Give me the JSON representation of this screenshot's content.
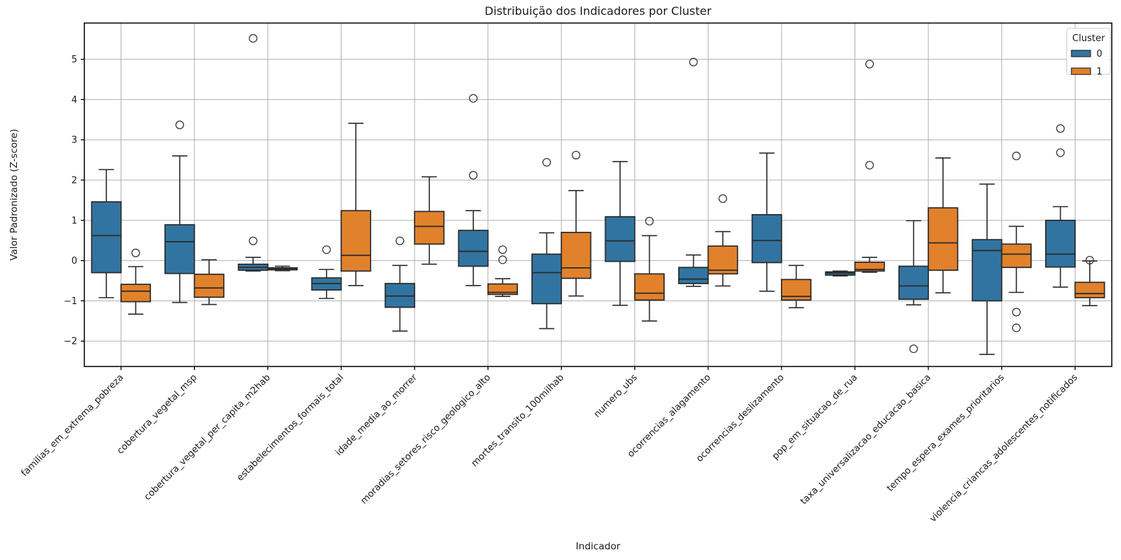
{
  "figure": {
    "title": "Distribuição dos Indicadores por Cluster",
    "xlabel": "Indicador",
    "ylabel": "Valor Padronizado (Z-score)"
  },
  "legend": {
    "title": "Cluster",
    "entries": [
      {
        "label": "0",
        "color": "#3274a1"
      },
      {
        "label": "1",
        "color": "#e1812c"
      }
    ]
  },
  "style": {
    "blue": "#3274a1",
    "orange": "#e1812c",
    "box_edge": "#2b2b2b",
    "outlier_edge": "#3b3b3b",
    "grid_color": "#b0b0b0",
    "spine_color": "#000000",
    "text_color": "#1a1a1a",
    "legend_border": "#cccccc"
  },
  "chart_data": {
    "type": "box",
    "title": "Distribuição dos Indicadores por Cluster",
    "xlabel": "Indicador",
    "ylabel": "Valor Padronizado (Z-score)",
    "ylim": [
      -2.63,
      5.9
    ],
    "yticks": [
      -2,
      -1,
      0,
      1,
      2,
      3,
      4,
      5
    ],
    "ytick_labels": [
      "−2",
      "−1",
      "0",
      "1",
      "2",
      "3",
      "4",
      "5"
    ],
    "grid": true,
    "legend_position": "top-right",
    "legend_title": "Cluster",
    "categories": [
      "familias_em_extrema_pobreza",
      "cobertura_vegetal_msp",
      "cobertura_vegetal_per_capita_m2hab",
      "estabelecimentos_formais_total",
      "idade_media_ao_morrer",
      "moradias_setores_risco_geologico_alto",
      "mortes_transito_100milhab",
      "numero_ubs",
      "ocorrencias_alagamento",
      "ocorrencias_deslizamento",
      "pop_em_situacao_de_rua",
      "taxa_universalizacao_educacao_basica",
      "tempo_espera_exames_prioritarios",
      "violencia_criancas_adolescentes_notificados"
    ],
    "series": [
      {
        "name": "0",
        "color": "#3274a1",
        "boxes": [
          {
            "lo": -0.92,
            "q1": -0.3,
            "med": 0.62,
            "q3": 1.46,
            "hi": 2.26,
            "out": []
          },
          {
            "lo": -1.04,
            "q1": -0.32,
            "med": 0.47,
            "q3": 0.89,
            "hi": 2.6,
            "out": [
              3.37
            ]
          },
          {
            "lo": -0.26,
            "q1": -0.24,
            "med": -0.17,
            "q3": -0.09,
            "hi": 0.08,
            "out": [
              0.49,
              5.52
            ]
          },
          {
            "lo": -0.94,
            "q1": -0.73,
            "med": -0.57,
            "q3": -0.43,
            "hi": -0.22,
            "out": [
              0.27
            ]
          },
          {
            "lo": -1.75,
            "q1": -1.16,
            "med": -0.88,
            "q3": -0.57,
            "hi": -0.12,
            "out": [
              0.49
            ]
          },
          {
            "lo": -0.62,
            "q1": -0.14,
            "med": 0.23,
            "q3": 0.75,
            "hi": 1.24,
            "out": [
              2.12,
              4.03
            ]
          },
          {
            "lo": -1.69,
            "q1": -1.07,
            "med": -0.3,
            "q3": 0.16,
            "hi": 0.69,
            "out": [
              2.44
            ]
          },
          {
            "lo": -1.11,
            "q1": -0.02,
            "med": 0.49,
            "q3": 1.09,
            "hi": 2.46,
            "out": []
          },
          {
            "lo": -0.64,
            "q1": -0.57,
            "med": -0.46,
            "q3": -0.17,
            "hi": 0.14,
            "out": [
              4.93
            ]
          },
          {
            "lo": -0.76,
            "q1": -0.05,
            "med": 0.5,
            "q3": 1.14,
            "hi": 2.67,
            "out": []
          },
          {
            "lo": -0.38,
            "q1": -0.36,
            "med": -0.31,
            "q3": -0.28,
            "hi": -0.26,
            "out": []
          },
          {
            "lo": -1.1,
            "q1": -0.96,
            "med": -0.63,
            "q3": -0.14,
            "hi": 0.99,
            "out": [
              -2.19
            ]
          },
          {
            "lo": -2.33,
            "q1": -1.0,
            "med": 0.25,
            "q3": 0.52,
            "hi": 1.9,
            "out": []
          },
          {
            "lo": -0.66,
            "q1": -0.16,
            "med": 0.16,
            "q3": 1.0,
            "hi": 1.34,
            "out": [
              2.68,
              3.28
            ]
          }
        ]
      },
      {
        "name": "1",
        "color": "#e1812c",
        "boxes": [
          {
            "lo": -1.33,
            "q1": -1.02,
            "med": -0.76,
            "q3": -0.59,
            "hi": -0.15,
            "out": [
              0.19
            ]
          },
          {
            "lo": -1.09,
            "q1": -0.91,
            "med": -0.68,
            "q3": -0.34,
            "hi": 0.02,
            "out": []
          },
          {
            "lo": -0.25,
            "q1": -0.23,
            "med": -0.2,
            "q3": -0.18,
            "hi": -0.14,
            "out": []
          },
          {
            "lo": -0.62,
            "q1": -0.26,
            "med": 0.13,
            "q3": 1.24,
            "hi": 3.41,
            "out": []
          },
          {
            "lo": -0.09,
            "q1": 0.41,
            "med": 0.85,
            "q3": 1.22,
            "hi": 2.08,
            "out": []
          },
          {
            "lo": -0.89,
            "q1": -0.84,
            "med": -0.79,
            "q3": -0.58,
            "hi": -0.45,
            "out": [
              0.02,
              0.27
            ]
          },
          {
            "lo": -0.88,
            "q1": -0.44,
            "med": -0.18,
            "q3": 0.7,
            "hi": 1.74,
            "out": [
              2.62
            ]
          },
          {
            "lo": -1.5,
            "q1": -0.98,
            "med": -0.81,
            "q3": -0.33,
            "hi": 0.62,
            "out": [
              0.98
            ]
          },
          {
            "lo": -0.63,
            "q1": -0.33,
            "med": -0.24,
            "q3": 0.36,
            "hi": 0.72,
            "out": [
              1.54
            ]
          },
          {
            "lo": -1.17,
            "q1": -0.98,
            "med": -0.89,
            "q3": -0.47,
            "hi": -0.12,
            "out": []
          },
          {
            "lo": -0.29,
            "q1": -0.26,
            "med": -0.22,
            "q3": -0.04,
            "hi": 0.08,
            "out": [
              2.37,
              4.88
            ]
          },
          {
            "lo": -0.8,
            "q1": -0.24,
            "med": 0.44,
            "q3": 1.31,
            "hi": 2.55,
            "out": []
          },
          {
            "lo": -0.79,
            "q1": -0.17,
            "med": 0.16,
            "q3": 0.41,
            "hi": 0.85,
            "out": [
              -1.67,
              -1.28,
              2.6
            ]
          },
          {
            "lo": -1.12,
            "q1": -0.92,
            "med": -0.82,
            "q3": -0.54,
            "hi": -0.01,
            "out": [
              0.01
            ]
          }
        ]
      }
    ]
  }
}
